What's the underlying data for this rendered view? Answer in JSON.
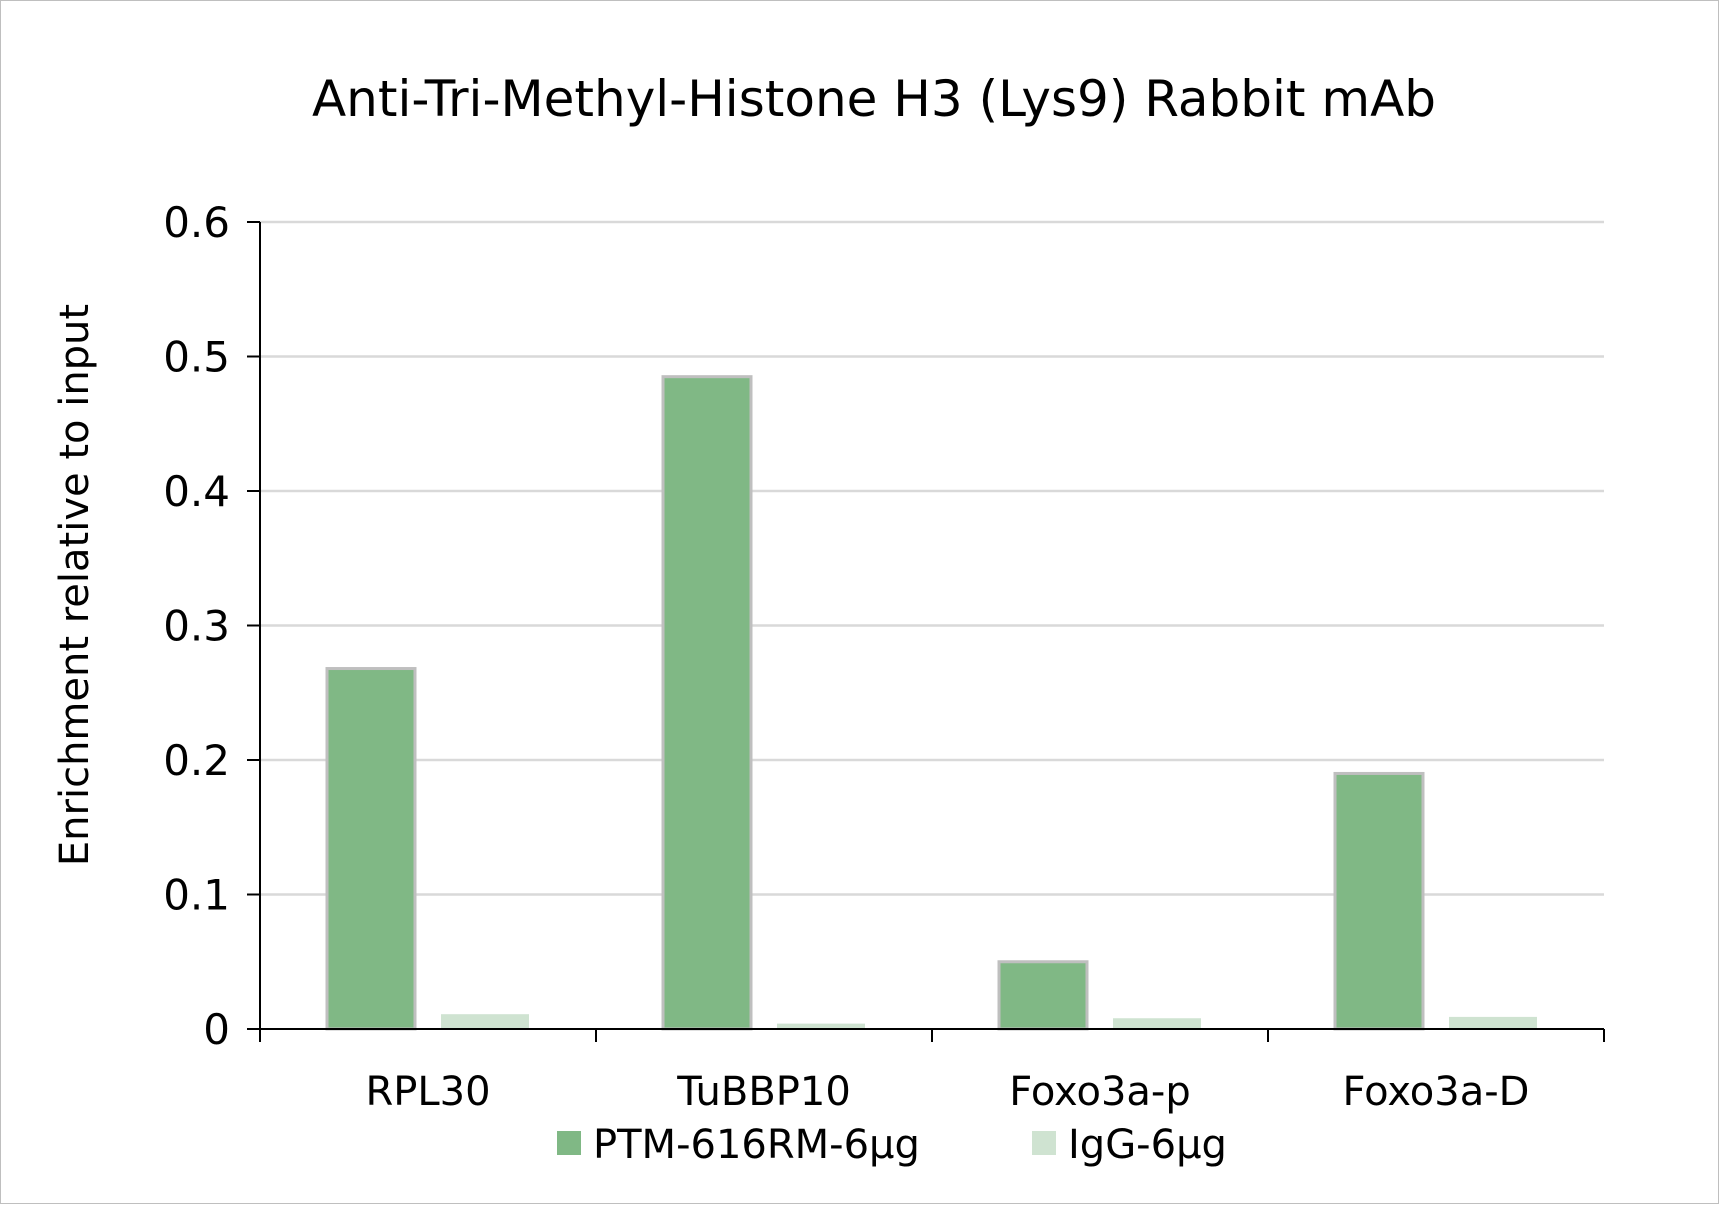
{
  "chart_data": {
    "type": "bar",
    "title": "Anti-Tri-Methyl-Histone H3 (Lys9) Rabbit mAb",
    "xlabel": "",
    "ylabel": "Enrichment relative to input",
    "categories": [
      "RPL30",
      "TuBBP10",
      "Foxo3a-p",
      "Foxo3a-D"
    ],
    "series": [
      {
        "name": "PTM-616RM-6μg",
        "values": [
          0.268,
          0.485,
          0.05,
          0.19
        ],
        "color": "#80b885"
      },
      {
        "name": "IgG-6μg",
        "values": [
          0.011,
          0.004,
          0.008,
          0.009
        ],
        "color": "#cfe3d1"
      }
    ],
    "ylim": [
      0,
      0.6
    ],
    "yticks": [
      "0",
      "0.1",
      "0.2",
      "0.3",
      "0.4",
      "0.5",
      "0.6"
    ],
    "grid": true,
    "legend_position": "bottom"
  }
}
